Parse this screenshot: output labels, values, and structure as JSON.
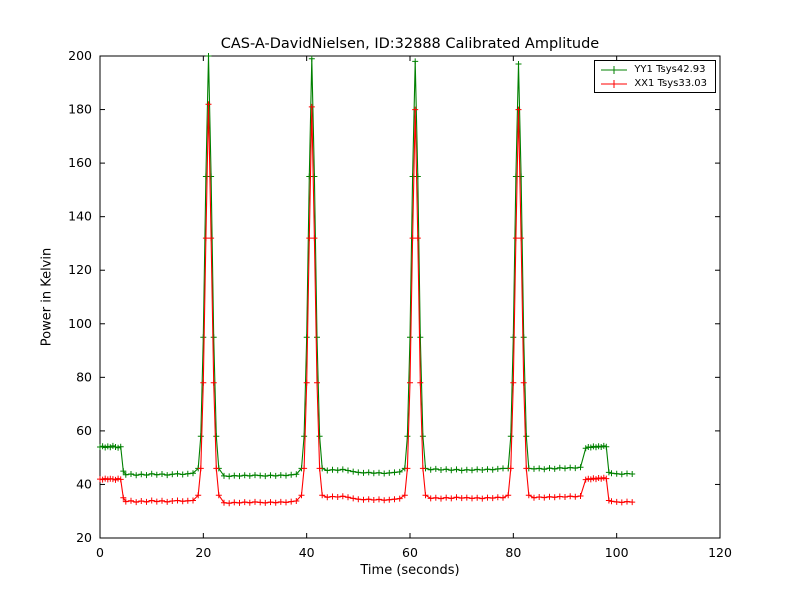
{
  "chart_data": {
    "type": "line",
    "title": "CAS-A-DavidNielsen, ID:32888 Calibrated Amplitude",
    "xlabel": "Time (seconds)",
    "ylabel": "Power in Kelvin",
    "xlim": [
      0,
      120
    ],
    "ylim": [
      20,
      200
    ],
    "x_ticks": [
      0,
      20,
      40,
      60,
      80,
      100,
      120
    ],
    "y_ticks": [
      20,
      40,
      60,
      80,
      100,
      120,
      140,
      160,
      180,
      200
    ],
    "grid": false,
    "marker": "+",
    "legend_position": "upper right",
    "x": [
      0,
      0.5,
      1,
      1.5,
      2,
      2.5,
      3,
      3.5,
      4,
      4.5,
      5,
      6,
      7,
      8,
      9,
      10,
      11,
      12,
      13,
      14,
      15,
      16,
      17,
      18,
      19,
      19.5,
      20,
      20.5,
      21,
      21.5,
      22,
      22.5,
      23,
      24,
      25,
      26,
      27,
      28,
      29,
      30,
      31,
      32,
      33,
      34,
      35,
      36,
      37,
      38,
      39,
      39.5,
      40,
      40.5,
      41,
      41.5,
      42,
      42.5,
      43,
      44,
      45,
      46,
      47,
      48,
      49,
      50,
      51,
      52,
      53,
      54,
      55,
      56,
      57,
      58,
      59,
      59.5,
      60,
      60.5,
      61,
      61.5,
      62,
      62.5,
      63,
      64,
      65,
      66,
      67,
      68,
      69,
      70,
      71,
      72,
      73,
      74,
      75,
      76,
      77,
      78,
      79,
      79.5,
      80,
      80.5,
      81,
      81.5,
      82,
      82.5,
      83,
      84,
      85,
      86,
      87,
      88,
      89,
      90,
      91,
      92,
      93,
      94,
      94.5,
      95,
      95.5,
      96,
      96.5,
      97,
      97.5,
      98,
      98.5,
      99,
      100,
      101,
      102,
      103
    ],
    "series": [
      {
        "name": "YY1 Tsys42.93",
        "color": "#008000",
        "values": [
          54.0,
          54.3,
          53.8,
          54.2,
          53.9,
          54.4,
          54.0,
          53.7,
          54.1,
          45.0,
          43.6,
          43.9,
          43.4,
          43.8,
          43.5,
          44.0,
          43.6,
          43.9,
          43.5,
          43.8,
          44.0,
          43.7,
          44.0,
          44.2,
          46,
          58,
          95,
          155,
          200,
          155,
          95,
          58,
          46,
          43.2,
          43.0,
          43.3,
          43.1,
          43.4,
          43.2,
          43.5,
          43.3,
          43.1,
          43.4,
          43.2,
          43.5,
          43.3,
          43.6,
          43.8,
          46,
          58,
          95,
          155,
          199,
          155,
          95,
          58,
          46,
          45.2,
          45.5,
          45.3,
          45.6,
          45.2,
          44.8,
          44.5,
          44.3,
          44.5,
          44.2,
          44.4,
          44.1,
          44.3,
          44.5,
          44.7,
          46,
          58,
          95,
          155,
          198,
          155,
          95,
          58,
          46,
          45.5,
          45.8,
          45.4,
          45.7,
          45.3,
          45.6,
          45.2,
          45.5,
          45.3,
          45.6,
          45.4,
          45.7,
          45.5,
          45.8,
          46.0,
          46,
          58,
          95,
          155,
          197,
          155,
          95,
          58,
          46,
          45.8,
          46.0,
          45.7,
          46.1,
          45.8,
          46.2,
          46.0,
          46.3,
          46.1,
          46.4,
          53.5,
          54.0,
          53.8,
          54.2,
          53.9,
          54.3,
          54.0,
          54.4,
          54.1,
          44.5,
          44.2,
          44.0,
          43.8,
          44.1,
          43.9
        ]
      },
      {
        "name": "XX1 Tsys33.03",
        "color": "#ff0000",
        "values": [
          42.0,
          41.8,
          42.2,
          41.9,
          42.1,
          42.0,
          41.7,
          42.2,
          41.9,
          35.0,
          33.6,
          33.9,
          33.4,
          33.8,
          33.5,
          34.0,
          33.6,
          33.9,
          33.5,
          33.8,
          34.0,
          33.7,
          33.9,
          34.0,
          36,
          46,
          78,
          132,
          182,
          132,
          78,
          46,
          36,
          33.2,
          33.0,
          33.3,
          33.1,
          33.4,
          33.2,
          33.5,
          33.3,
          33.1,
          33.4,
          33.2,
          33.5,
          33.3,
          33.6,
          33.8,
          36,
          46,
          78,
          132,
          181,
          132,
          78,
          46,
          36,
          35.2,
          35.5,
          35.3,
          35.6,
          35.2,
          34.8,
          34.5,
          34.3,
          34.5,
          34.2,
          34.4,
          34.1,
          34.3,
          34.5,
          34.7,
          36,
          46,
          78,
          132,
          180,
          132,
          78,
          46,
          36,
          34.8,
          35.0,
          34.7,
          35.1,
          34.8,
          35.2,
          34.9,
          35.1,
          34.8,
          35.0,
          34.7,
          35.1,
          34.9,
          35.2,
          35.0,
          36,
          46,
          78,
          132,
          180,
          132,
          78,
          46,
          36,
          35.0,
          35.3,
          35.1,
          35.4,
          35.2,
          35.5,
          35.3,
          35.6,
          35.4,
          35.7,
          41.8,
          42.1,
          41.9,
          42.3,
          42.0,
          42.4,
          42.1,
          42.5,
          42.2,
          34.0,
          33.7,
          33.5,
          33.3,
          33.6,
          33.4
        ]
      }
    ]
  }
}
